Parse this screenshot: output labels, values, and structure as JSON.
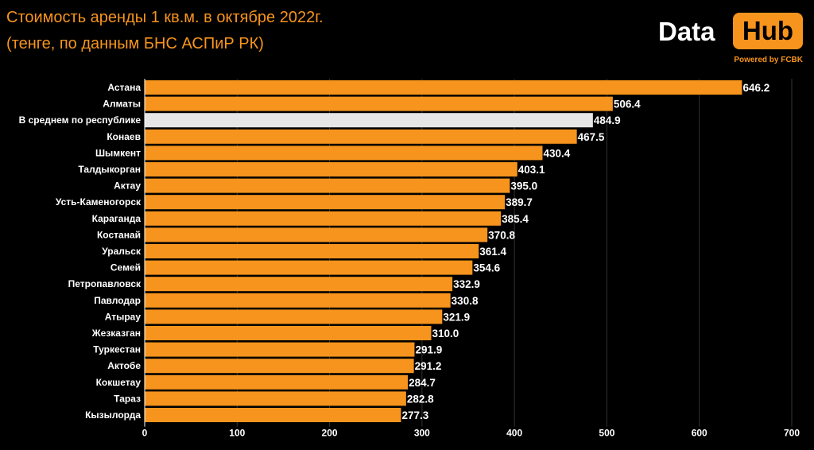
{
  "header": {
    "title_line1": "Стоимость аренды 1 кв.м. в октябре 2022г.",
    "title_line2": "(тенге, по данным БНС АСПиР РК)"
  },
  "logo": {
    "data_text": "Data",
    "hub_text": "Hub",
    "powered_by": "Powered by FCBK"
  },
  "colors": {
    "background": "#000000",
    "bar": "#f7941d",
    "highlight_bar": "#e6e6e6",
    "text": "#ffffff",
    "gridline": "#333333"
  },
  "chart_data": {
    "type": "bar",
    "orientation": "horizontal",
    "title": "Стоимость аренды 1 кв.м. в октябре 2022г.",
    "subtitle": "(тенге, по данным БНС АСПиР РК)",
    "xlabel": "",
    "ylabel": "",
    "xlim": [
      0,
      700
    ],
    "xticks": [
      0,
      100,
      200,
      300,
      400,
      500,
      600,
      700
    ],
    "grid": true,
    "highlight_category": "В среднем по республике",
    "categories": [
      "Астана",
      "Алматы",
      "В среднем по республике",
      "Конаев",
      "Шымкент",
      "Талдыкорган",
      "Актау",
      "Усть-Каменогорск",
      "Караганда",
      "Костанай",
      "Уральск",
      "Семей",
      "Петропавловск",
      "Павлодар",
      "Атырау",
      "Жезказган",
      "Туркестан",
      "Актобе",
      "Кокшетау",
      "Тараз",
      "Кызылорда"
    ],
    "values": [
      646.2,
      506.4,
      484.9,
      467.5,
      430.4,
      403.1,
      395.0,
      389.7,
      385.4,
      370.8,
      361.4,
      354.6,
      332.9,
      330.8,
      321.9,
      310.0,
      291.9,
      291.2,
      284.7,
      282.8,
      277.3
    ]
  }
}
